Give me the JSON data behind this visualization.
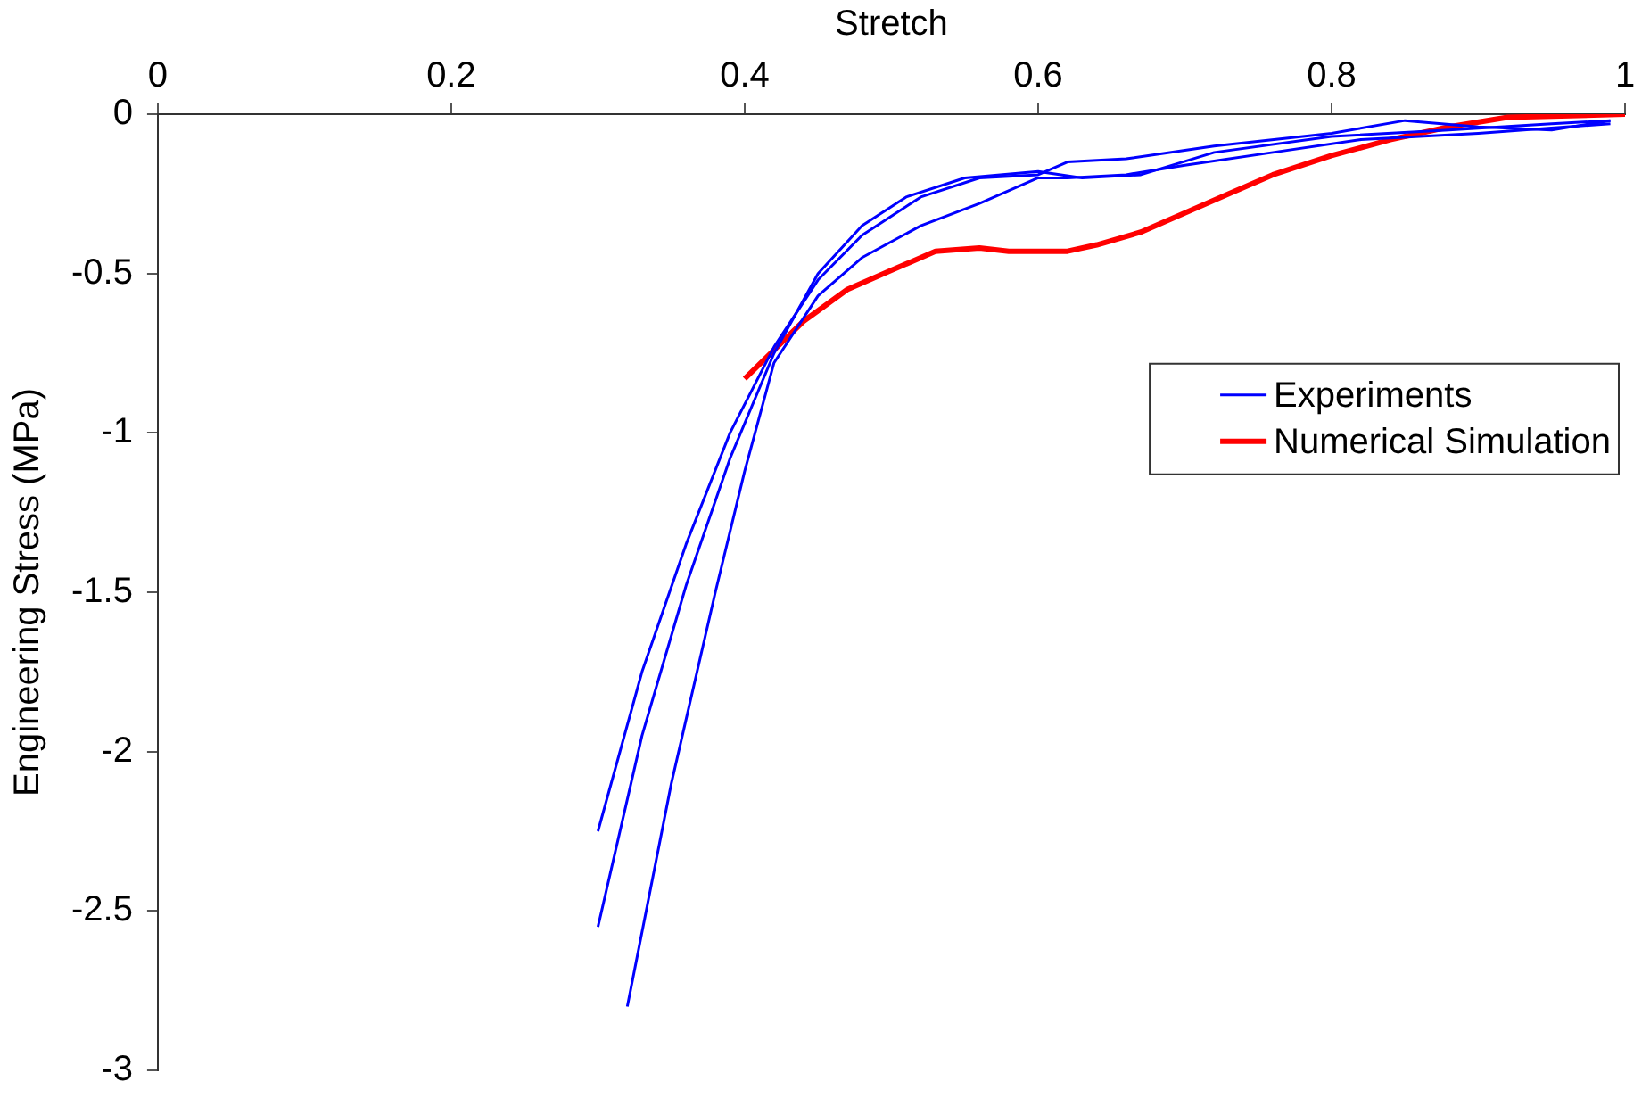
{
  "chart_data": {
    "type": "line",
    "xlabel": "Stretch",
    "ylabel": "Engineering Stress (MPa)",
    "xlim": [
      0,
      1
    ],
    "xticks": [
      0,
      0.2,
      0.4,
      0.6,
      0.8,
      1
    ],
    "ylim": [
      -3,
      0
    ],
    "yticks": [
      -3,
      -2.5,
      -2,
      -1.5,
      -1,
      -0.5,
      0
    ],
    "grid": false,
    "legend": "right",
    "marker": "none",
    "line_style": "solid",
    "series": [
      {
        "name": "Experiments",
        "color": "#0000ff",
        "x": [
          0.3,
          0.33,
          0.36,
          0.39,
          0.42,
          0.45,
          0.48,
          0.52,
          0.56,
          0.6,
          0.62,
          0.66,
          0.72,
          0.8,
          0.85,
          0.9,
          0.95,
          0.99
        ],
        "values": [
          -2.25,
          -1.75,
          -1.35,
          -1.0,
          -0.73,
          -0.52,
          -0.38,
          -0.26,
          -0.2,
          -0.19,
          -0.15,
          -0.14,
          -0.1,
          -0.06,
          -0.02,
          -0.04,
          -0.05,
          -0.02
        ]
      },
      {
        "color": "#0000ff",
        "x": [
          0.3,
          0.33,
          0.36,
          0.39,
          0.42,
          0.45,
          0.48,
          0.51,
          0.55,
          0.6,
          0.63,
          0.67,
          0.72,
          0.8,
          0.88,
          0.95,
          0.99
        ],
        "values": [
          -2.55,
          -1.95,
          -1.48,
          -1.08,
          -0.75,
          -0.5,
          -0.35,
          -0.26,
          -0.2,
          -0.18,
          -0.2,
          -0.19,
          -0.12,
          -0.07,
          -0.05,
          -0.03,
          -0.02
        ]
      },
      {
        "color": "#0000ff",
        "x": [
          0.32,
          0.35,
          0.38,
          0.4,
          0.42,
          0.45,
          0.48,
          0.52,
          0.56,
          0.6,
          0.62,
          0.66,
          0.7,
          0.76,
          0.82,
          0.9,
          0.99
        ],
        "values": [
          -2.8,
          -2.1,
          -1.5,
          -1.12,
          -0.78,
          -0.57,
          -0.45,
          -0.35,
          -0.28,
          -0.2,
          -0.2,
          -0.19,
          -0.16,
          -0.12,
          -0.08,
          -0.06,
          -0.03
        ]
      },
      {
        "name": "Numerical Simulation",
        "color": "#ff0000",
        "x": [
          0.4,
          0.42,
          0.44,
          0.47,
          0.5,
          0.53,
          0.56,
          0.58,
          0.62,
          0.64,
          0.67,
          0.7,
          0.73,
          0.76,
          0.8,
          0.84,
          0.88,
          0.92,
          1.0
        ],
        "values": [
          -0.83,
          -0.74,
          -0.65,
          -0.55,
          -0.49,
          -0.43,
          -0.42,
          -0.43,
          -0.43,
          -0.41,
          -0.37,
          -0.31,
          -0.25,
          -0.19,
          -0.13,
          -0.08,
          -0.04,
          -0.01,
          0
        ]
      }
    ]
  }
}
